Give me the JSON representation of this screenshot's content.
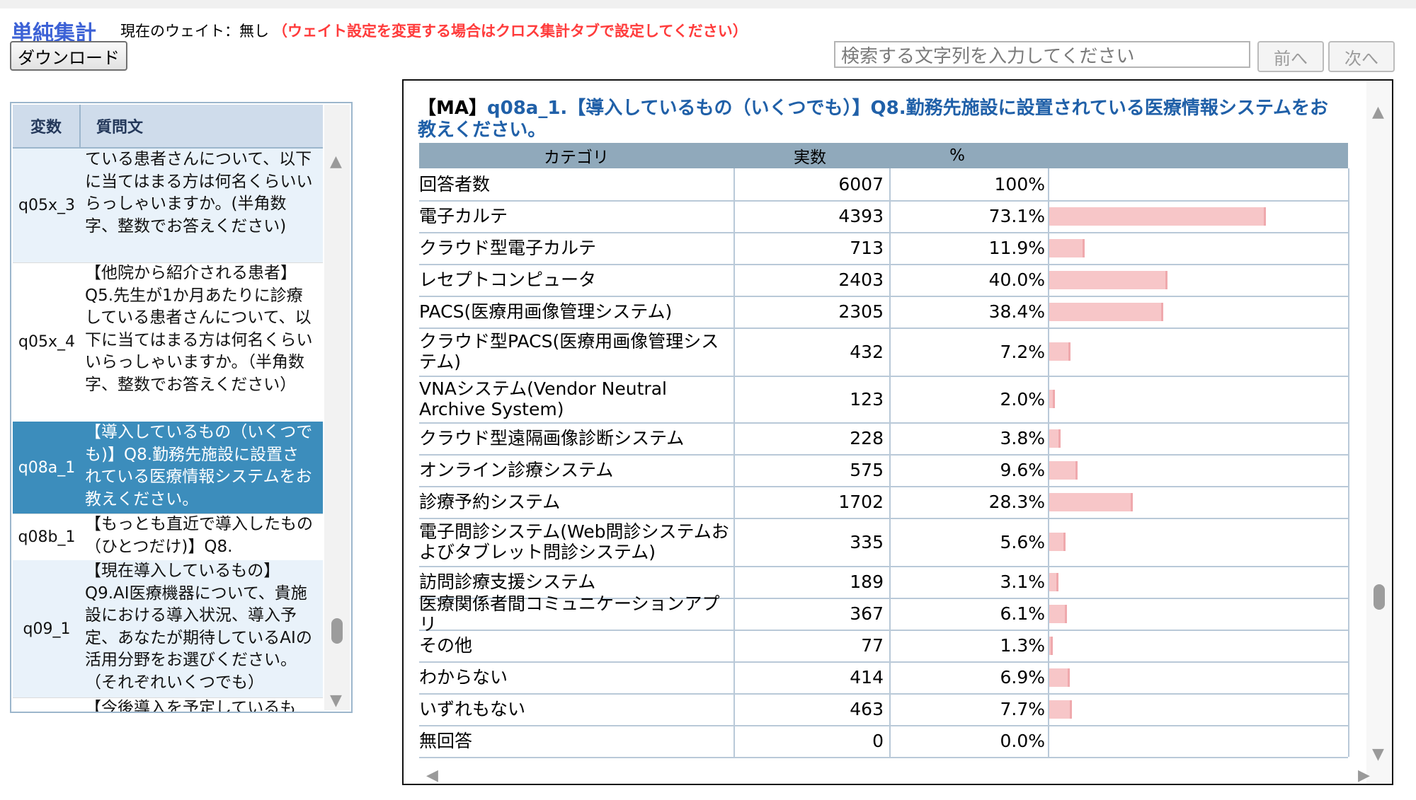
{
  "header": {
    "title": "単純集計",
    "weight_label": "現在のウェイト：無し",
    "weight_note": "（ウェイト設定を変更する場合はクロス集計タブで設定してください）",
    "download_label": "ダウンロード"
  },
  "search": {
    "placeholder": "検索する文字列を入力してください",
    "prev_label": "前へ",
    "next_label": "次へ"
  },
  "variables": {
    "columns": [
      "変数",
      "質問文"
    ],
    "rows": [
      {
        "var": "q05x_3",
        "text": "ている患者さんについて、以下に当てはまる方は何名くらいいらっしゃいますか。(半角数字、整数でお答えください)"
      },
      {
        "var": "q05x_4",
        "text": "【他院から紹介される患者】Q5.先生が1か月あたりに診療している患者さんについて、以下に当てはまる方は何名くらいいらっしゃいますか。（半角数字、整数でお答えください）"
      },
      {
        "var": "q08a_1",
        "text": "【導入しているもの（いくつでも)】Q8.勤務先施設に設置されている医療情報システムをお教えください。"
      },
      {
        "var": "q08b_1",
        "text": "【もっとも直近で導入したもの（ひとつだけ)】Q8."
      },
      {
        "var": "q09_1",
        "text": "【現在導入しているもの】Q9.AI医療機器について、貴施設における導入状況、導入予定、あなたが期待しているAIの活用分野をお選びください。（それぞれいくつでも）"
      },
      {
        "var": "",
        "text": "【今後導入を予定しているも"
      }
    ]
  },
  "result": {
    "title_tag": "【MA】",
    "title_text": "q08a_1.【導入しているもの（いくつでも）】Q8.勤務先施設に設置されている医療情報システムをお教えください。",
    "columns": [
      "カテゴリ",
      "実数",
      "%"
    ],
    "rows": [
      {
        "cat": "回答者数",
        "n": "6007",
        "pct": "100%",
        "value": 100
      },
      {
        "cat": "電子カルテ",
        "n": "4393",
        "pct": "73.1%",
        "value": 73.1
      },
      {
        "cat": "クラウド型電子カルテ",
        "n": "713",
        "pct": "11.9%",
        "value": 11.9
      },
      {
        "cat": "レセプトコンピュータ",
        "n": "2403",
        "pct": "40.0%",
        "value": 40.0
      },
      {
        "cat": "PACS(医療用画像管理システム)",
        "n": "2305",
        "pct": "38.4%",
        "value": 38.4
      },
      {
        "cat": "クラウド型PACS(医療用画像管理システム)",
        "n": "432",
        "pct": "7.2%",
        "value": 7.2
      },
      {
        "cat": "VNAシステム(Vendor Neutral Archive System)",
        "n": "123",
        "pct": "2.0%",
        "value": 2.0
      },
      {
        "cat": "クラウド型遠隔画像診断システム",
        "n": "228",
        "pct": "3.8%",
        "value": 3.8
      },
      {
        "cat": "オンライン診療システム",
        "n": "575",
        "pct": "9.6%",
        "value": 9.6
      },
      {
        "cat": "診療予約システム",
        "n": "1702",
        "pct": "28.3%",
        "value": 28.3
      },
      {
        "cat": "電子問診システム(Web問診システムおよびタブレット問診システム)",
        "n": "335",
        "pct": "5.6%",
        "value": 5.6
      },
      {
        "cat": "訪問診療支援システム",
        "n": "189",
        "pct": "3.1%",
        "value": 3.1
      },
      {
        "cat": "医療関係者間コミュニケーションアプリ",
        "n": "367",
        "pct": "6.1%",
        "value": 6.1
      },
      {
        "cat": "その他",
        "n": "77",
        "pct": "1.3%",
        "value": 1.3
      },
      {
        "cat": "わからない",
        "n": "414",
        "pct": "6.9%",
        "value": 6.9
      },
      {
        "cat": "いずれもない",
        "n": "463",
        "pct": "7.7%",
        "value": 7.7
      },
      {
        "cat": "無回答",
        "n": "0",
        "pct": "0.0%",
        "value": 0.0
      }
    ],
    "bar_color": "#f7c6c8"
  },
  "colors": {
    "title": "#3d62d6",
    "note": "#ff3b3b",
    "selected_row": "#3c8dbc",
    "table_header": "#90a9bb"
  }
}
